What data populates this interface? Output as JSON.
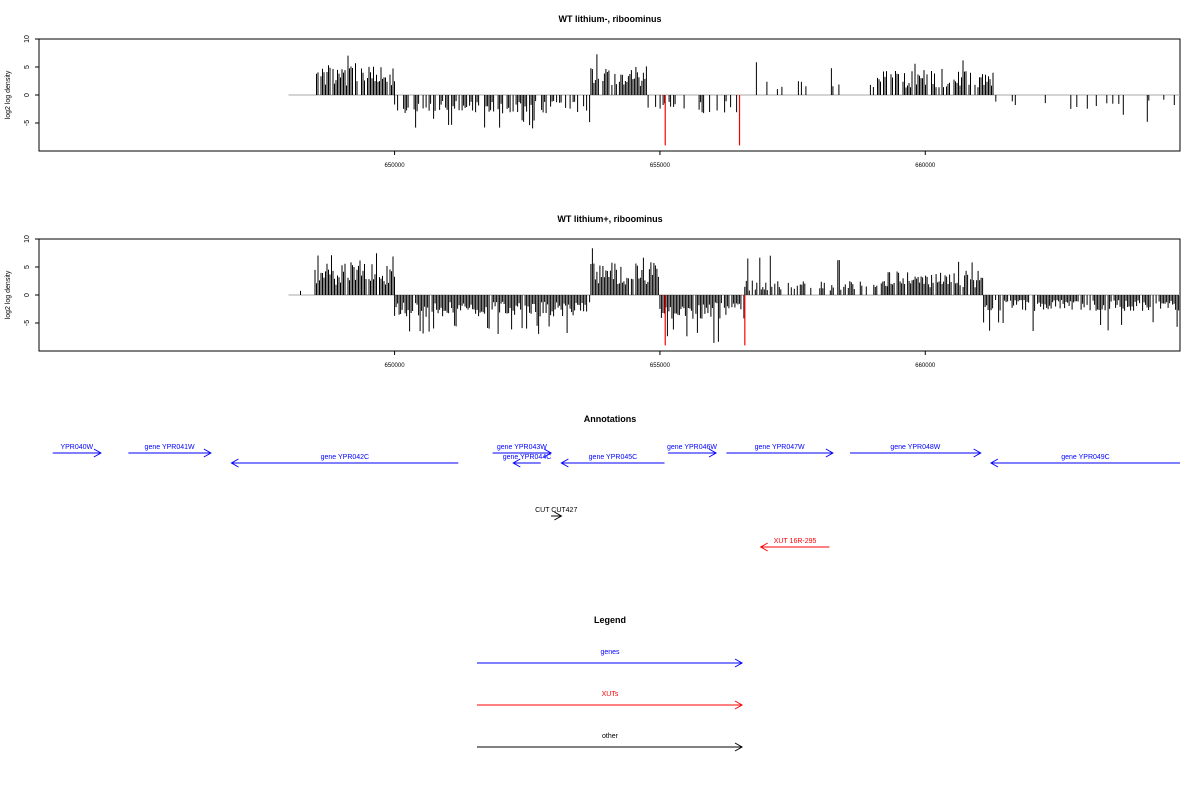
{
  "colors": {
    "positive": "#000000",
    "negative": "#000000",
    "xut": "#ff0000",
    "gene": "#0000ff",
    "other": "#000000",
    "baseline": "#aaaaaa"
  },
  "panels": [
    {
      "title": "WT lithium-, riboominus",
      "ylabel": "log2 log density",
      "ylim": [
        -10,
        10
      ],
      "yticks": [
        "10",
        "5",
        "0",
        "-5"
      ],
      "xlim": [
        643300,
        659600
      ],
      "xticks": [
        {
          "value": 650000,
          "label": "650000"
        },
        {
          "value": 655000,
          "label": "655000"
        },
        {
          "value": 660000,
          "label": "660000"
        }
      ]
    },
    {
      "title": "WT lithium+, riboominus",
      "ylabel": "log2 log density",
      "ylim": [
        -10,
        10
      ],
      "yticks": [
        "10",
        "5",
        "0",
        "-5"
      ],
      "xlim": [
        643300,
        659600
      ],
      "xticks": [
        {
          "value": 650000,
          "label": "650000"
        },
        {
          "value": 655000,
          "label": "655000"
        },
        {
          "value": 660000,
          "label": "660000"
        }
      ]
    }
  ],
  "chart_data": [
    {
      "type": "bar",
      "title": "WT lithium-, riboominus",
      "ylabel": "log2 log density",
      "ylim": [
        -10,
        10
      ],
      "segments": [
        {
          "x_start": 648500,
          "x_end": 650000,
          "strand": "+",
          "level": 4.2,
          "max": 7.2,
          "density": 0.92
        },
        {
          "x_start": 650000,
          "x_end": 653700,
          "strand": "-",
          "level": -2.6,
          "max": -6.0,
          "density": 0.55
        },
        {
          "x_start": 653700,
          "x_end": 654750,
          "strand": "+",
          "level": 4.0,
          "max": 9.2,
          "density": 0.85
        },
        {
          "x_start": 654750,
          "x_end": 656450,
          "strand": "-",
          "level": -2.5,
          "max": -6.0,
          "density": 0.45
        },
        {
          "x_start": 656450,
          "x_end": 659100,
          "strand": "+",
          "level": 2.2,
          "max": 6.0,
          "density": 0.15
        },
        {
          "x_start": 659100,
          "x_end": 661300,
          "strand": "+",
          "level": 3.3,
          "max": 6.2,
          "density": 0.75
        },
        {
          "x_start": 661300,
          "x_end": 664800,
          "strand": "-",
          "level": -2.0,
          "max": -5.0,
          "density": 0.12
        }
      ],
      "highlights": [
        {
          "x": 655100,
          "y": -9.0
        },
        {
          "x": 656500,
          "y": -9.0
        }
      ]
    },
    {
      "type": "bar",
      "title": "WT lithium+, riboominus",
      "ylabel": "log2 log density",
      "ylim": [
        -10,
        10
      ],
      "segments": [
        {
          "x_start": 648200,
          "x_end": 648400,
          "strand": "+",
          "level": 1.2,
          "max": 1.5,
          "density": 0.3
        },
        {
          "x_start": 648500,
          "x_end": 650000,
          "strand": "+",
          "level": 4.3,
          "max": 7.5,
          "density": 0.95
        },
        {
          "x_start": 650000,
          "x_end": 653700,
          "strand": "-",
          "level": -3.0,
          "max": -7.0,
          "density": 0.95
        },
        {
          "x_start": 653700,
          "x_end": 655000,
          "strand": "+",
          "level": 4.5,
          "max": 9.5,
          "density": 0.95
        },
        {
          "x_start": 655000,
          "x_end": 656600,
          "strand": "-",
          "level": -3.3,
          "max": -8.8,
          "density": 0.95
        },
        {
          "x_start": 656600,
          "x_end": 659300,
          "strand": "+",
          "level": 2.0,
          "max": 7.5,
          "density": 0.55
        },
        {
          "x_start": 659300,
          "x_end": 661100,
          "strand": "+",
          "level": 3.3,
          "max": 6.0,
          "density": 0.95
        },
        {
          "x_start": 661100,
          "x_end": 664800,
          "strand": "-",
          "level": -2.2,
          "max": -6.5,
          "density": 0.9
        }
      ],
      "highlights": [
        {
          "x": 655100,
          "y": -9.0
        },
        {
          "x": 656600,
          "y": -9.0
        }
      ]
    }
  ],
  "annotations": {
    "title": "Annotations",
    "features": [
      {
        "label": "YPR040W",
        "type": "gene",
        "strand": "+",
        "start": 643200,
        "end": 643900,
        "row": 0
      },
      {
        "label": "gene YPR041W",
        "type": "gene",
        "strand": "+",
        "start": 644300,
        "end": 645500,
        "row": 0
      },
      {
        "label": "gene YPR042C",
        "type": "gene",
        "strand": "-",
        "start": 645800,
        "end": 649100,
        "row": 1
      },
      {
        "label": "gene YPR043W",
        "type": "gene",
        "strand": "+",
        "start": 649600,
        "end": 650450,
        "row": 0
      },
      {
        "label": "gene YPR044C",
        "type": "gene",
        "strand": "-",
        "start": 649900,
        "end": 650300,
        "row": 1
      },
      {
        "label": "gene YPR045C",
        "type": "gene",
        "strand": "-",
        "start": 650600,
        "end": 652100,
        "row": 1
      },
      {
        "label": "gene YPR046W",
        "type": "gene",
        "strand": "+",
        "start": 652150,
        "end": 652850,
        "row": 0
      },
      {
        "label": "gene YPR047W",
        "type": "gene",
        "strand": "+",
        "start": 653000,
        "end": 654550,
        "row": 0
      },
      {
        "label": "gene YPR048W",
        "type": "gene",
        "strand": "+",
        "start": 654800,
        "end": 656700,
        "row": 0
      },
      {
        "label": "gene YPR049C",
        "type": "gene",
        "strand": "-",
        "start": 656850,
        "end": 659600,
        "row": 1
      },
      {
        "label": "CUT CUT427",
        "type": "other",
        "strand": "+",
        "start": 650450,
        "end": 650600,
        "row": 2
      },
      {
        "label": "XUT 16R-295",
        "type": "xut",
        "strand": "-",
        "start": 653500,
        "end": 654500,
        "row": 3
      }
    ]
  },
  "legend": {
    "title": "Legend",
    "items": [
      {
        "label": "genes",
        "color": "#0000ff"
      },
      {
        "label": "XUTs",
        "color": "#ff0000"
      },
      {
        "label": "other",
        "color": "#000000"
      }
    ]
  }
}
